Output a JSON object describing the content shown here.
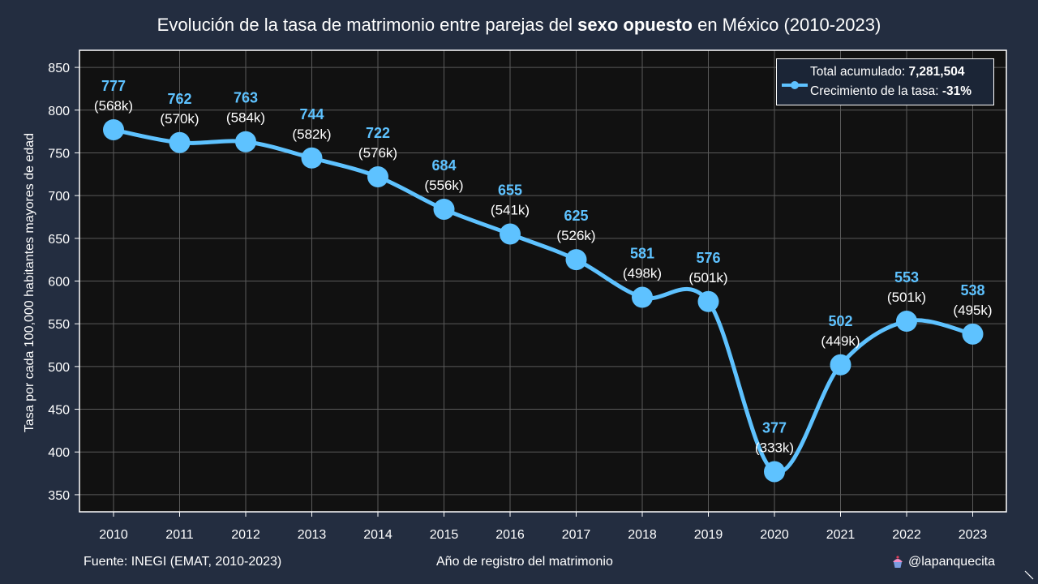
{
  "title": {
    "prefix": "Evolución de la tasa de matrimonio entre parejas del ",
    "emphasis": "sexo opuesto",
    "suffix": " en México (2010-2023)"
  },
  "legend": {
    "total_label": "Total acumulado: ",
    "total_value": "7,281,504",
    "growth_label": "Crecimiento de la tasa: ",
    "growth_value": "-31%",
    "position": "top-right"
  },
  "footer": {
    "source": "Fuente: INEGI (EMAT, 2010-2023)",
    "handle": "@lapanquecita"
  },
  "colors": {
    "background": "#232d40",
    "plot_background": "#111111",
    "line": "#5ec2ff",
    "value_label": "#5ec2ff",
    "text": "#ffffff",
    "grid": "#5a5a5a"
  },
  "chart_data": {
    "type": "line",
    "title": "Evolución de la tasa de matrimonio entre parejas del sexo opuesto en México (2010-2023)",
    "xlabel": "Año de registro del matrimonio",
    "ylabel": "Tasa por cada 100,000 habitantes mayores de edad",
    "x": [
      "2010",
      "2011",
      "2012",
      "2013",
      "2014",
      "2015",
      "2016",
      "2017",
      "2018",
      "2019",
      "2020",
      "2021",
      "2022",
      "2023"
    ],
    "series": [
      {
        "values": [
          777,
          762,
          763,
          744,
          722,
          684,
          655,
          625,
          581,
          576,
          377,
          502,
          553,
          538
        ],
        "secondary_labels": [
          "(568k)",
          "(570k)",
          "(584k)",
          "(582k)",
          "(576k)",
          "(556k)",
          "(541k)",
          "(526k)",
          "(498k)",
          "(501k)",
          "(333k)",
          "(449k)",
          "(501k)",
          "(495k)"
        ]
      }
    ],
    "ylim": [
      330,
      870
    ],
    "yticks": [
      350,
      400,
      450,
      500,
      550,
      600,
      650,
      700,
      750,
      800,
      850
    ],
    "grid": true,
    "legend": "top-right"
  }
}
